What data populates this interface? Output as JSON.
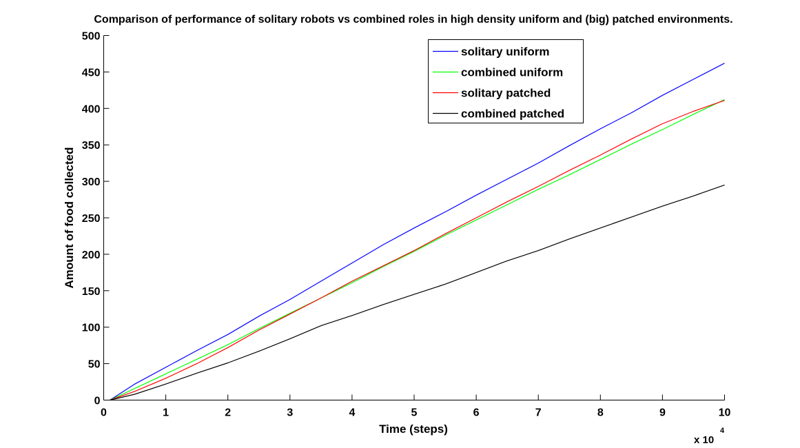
{
  "chart_data": {
    "type": "line",
    "title": "Comparison of performance of solitary robots vs combined roles in high density uniform and (big) patched environments.",
    "xlabel": "Time (steps)",
    "ylabel": "Amount of food collected",
    "x_multiplier": "x 10",
    "x_multiplier_exponent": "4",
    "xlim": [
      0,
      10
    ],
    "ylim": [
      0,
      500
    ],
    "xticks": [
      0,
      1,
      2,
      3,
      4,
      5,
      6,
      7,
      8,
      9,
      10
    ],
    "yticks": [
      0,
      50,
      100,
      150,
      200,
      250,
      300,
      350,
      400,
      450,
      500
    ],
    "grid": false,
    "legend_position": "top-right",
    "x": [
      0.1,
      0.5,
      1,
      1.5,
      2,
      2.5,
      3,
      3.5,
      4,
      4.5,
      5,
      5.5,
      6,
      6.5,
      7,
      7.5,
      8,
      8.5,
      9,
      9.5,
      10
    ],
    "series": [
      {
        "name": "solitary uniform",
        "color": "#0000ff",
        "values": [
          0,
          22,
          45,
          68,
          90,
          115,
          138,
          163,
          188,
          213,
          236,
          258,
          281,
          303,
          325,
          349,
          372,
          394,
          418,
          440,
          462
        ]
      },
      {
        "name": "combined uniform",
        "color": "#00ff00",
        "values": [
          0,
          16,
          36,
          56,
          76,
          98,
          119,
          140,
          161,
          183,
          204,
          226,
          247,
          268,
          289,
          309,
          330,
          351,
          371,
          392,
          412
        ]
      },
      {
        "name": "solitary patched",
        "color": "#ff0000",
        "values": [
          0,
          12,
          30,
          50,
          72,
          96,
          118,
          140,
          163,
          184,
          205,
          228,
          250,
          272,
          293,
          315,
          336,
          358,
          379,
          396,
          411
        ]
      },
      {
        "name": "combined patched",
        "color": "#000000",
        "values": [
          0,
          8,
          22,
          37,
          51,
          67,
          84,
          102,
          116,
          131,
          145,
          159,
          175,
          191,
          205,
          221,
          236,
          251,
          266,
          280,
          295
        ]
      }
    ]
  }
}
